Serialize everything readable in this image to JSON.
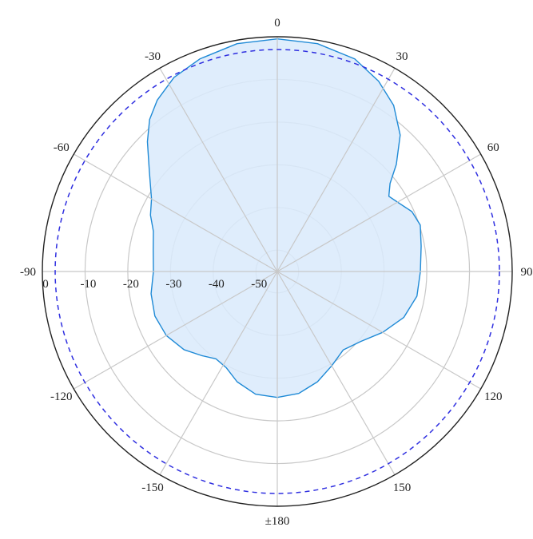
{
  "chart_data": {
    "type": "polar",
    "angle_unit": "degrees",
    "angle_zero": "top",
    "angle_direction": "clockwise",
    "angle_ticks": [
      {
        "angle": 0,
        "label": "0"
      },
      {
        "angle": 30,
        "label": "30"
      },
      {
        "angle": 60,
        "label": "60"
      },
      {
        "angle": 90,
        "label": "90"
      },
      {
        "angle": 120,
        "label": "120"
      },
      {
        "angle": 150,
        "label": "150"
      },
      {
        "angle": 180,
        "label": "±180"
      },
      {
        "angle": -150,
        "label": "-150"
      },
      {
        "angle": -120,
        "label": "-120"
      },
      {
        "angle": -90,
        "label": "-90"
      },
      {
        "angle": -60,
        "label": "-60"
      },
      {
        "angle": -30,
        "label": "-30"
      }
    ],
    "radial_ticks": [
      {
        "value": 0,
        "label": "0"
      },
      {
        "value": -10,
        "label": "-10"
      },
      {
        "value": -20,
        "label": "-20"
      },
      {
        "value": -30,
        "label": "-30"
      },
      {
        "value": -40,
        "label": "-40"
      },
      {
        "value": -50,
        "label": "-50"
      }
    ],
    "rlim": [
      -55,
      0
    ],
    "grid": true,
    "colors": {
      "pattern_fill": "#d9eafb",
      "pattern_stroke": "#1f8ad6",
      "reference_circle": "#2f2fe0",
      "grid": "#c8c8c8",
      "outer_ring": "#222222"
    },
    "reference_level": -3,
    "series": [
      {
        "style": "filled",
        "points": [
          {
            "angle": 0,
            "value": -0.5
          },
          {
            "angle": 10,
            "value": -0.8
          },
          {
            "angle": 20,
            "value": -2.0
          },
          {
            "angle": 28,
            "value": -4.5
          },
          {
            "angle": 35,
            "value": -7.5
          },
          {
            "angle": 42,
            "value": -12.0
          },
          {
            "angle": 48,
            "value": -17.5
          },
          {
            "angle": 52,
            "value": -21.5
          },
          {
            "angle": 56,
            "value": -23.5
          },
          {
            "angle": 60,
            "value": -22.5
          },
          {
            "angle": 66,
            "value": -20.5
          },
          {
            "angle": 72,
            "value": -19.8
          },
          {
            "angle": 80,
            "value": -20.8
          },
          {
            "angle": 90,
            "value": -21.5
          },
          {
            "angle": 100,
            "value": -21.8
          },
          {
            "angle": 110,
            "value": -23.5
          },
          {
            "angle": 120,
            "value": -26.5
          },
          {
            "angle": 130,
            "value": -29.5
          },
          {
            "angle": 140,
            "value": -31.0
          },
          {
            "angle": 150,
            "value": -29.5
          },
          {
            "angle": 160,
            "value": -27.5
          },
          {
            "angle": 170,
            "value": -26.0
          },
          {
            "angle": 180,
            "value": -25.5
          },
          {
            "angle": -170,
            "value": -25.8
          },
          {
            "angle": -160,
            "value": -27.5
          },
          {
            "angle": -152,
            "value": -29.5
          },
          {
            "angle": -145,
            "value": -30.0
          },
          {
            "angle": -138,
            "value": -28.5
          },
          {
            "angle": -130,
            "value": -26.5
          },
          {
            "angle": -120,
            "value": -25.0
          },
          {
            "angle": -110,
            "value": -24.5
          },
          {
            "angle": -100,
            "value": -25.0
          },
          {
            "angle": -90,
            "value": -26.0
          },
          {
            "angle": -80,
            "value": -25.5
          },
          {
            "angle": -72,
            "value": -24.5
          },
          {
            "angle": -66,
            "value": -22.5
          },
          {
            "angle": -60,
            "value": -21.0
          },
          {
            "angle": -52,
            "value": -17.0
          },
          {
            "angle": -45,
            "value": -12.0
          },
          {
            "angle": -40,
            "value": -8.5
          },
          {
            "angle": -35,
            "value": -6.0
          },
          {
            "angle": -28,
            "value": -3.5
          },
          {
            "angle": -20,
            "value": -2.0
          },
          {
            "angle": -10,
            "value": -0.8
          }
        ]
      }
    ]
  }
}
